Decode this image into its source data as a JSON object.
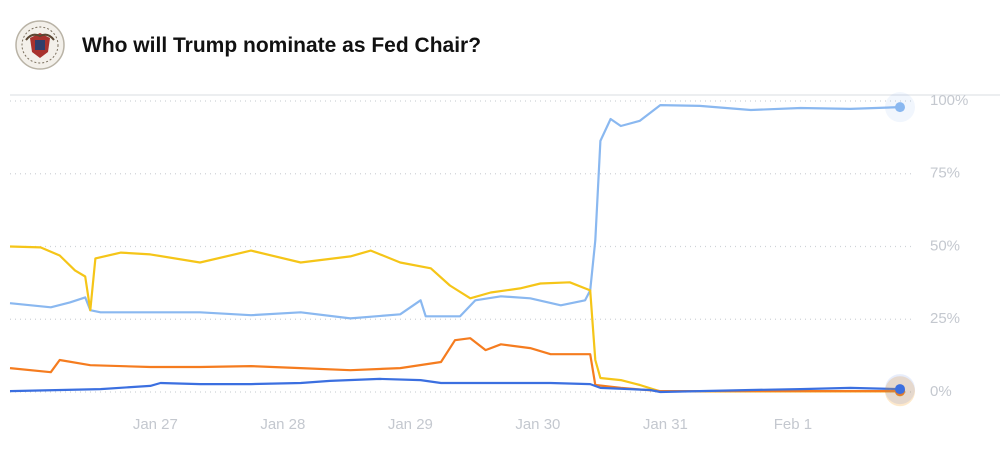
{
  "chart_data": {
    "type": "line",
    "title": "Who will Trump nominate as Fed Chair?",
    "xlim": [
      25.86,
      32.84
    ],
    "xticks": [
      {
        "value": 27,
        "label": "Jan 27"
      },
      {
        "value": 28,
        "label": "Jan 28"
      },
      {
        "value": 29,
        "label": "Jan 29"
      },
      {
        "value": 30,
        "label": "Jan 30"
      },
      {
        "value": 31,
        "label": "Jan 31"
      },
      {
        "value": 32,
        "label": "Feb 1"
      }
    ],
    "ylim": [
      0,
      100
    ],
    "yticks": [
      {
        "value": 0,
        "label": "0%"
      },
      {
        "value": 25,
        "label": "25%"
      },
      {
        "value": 50,
        "label": "50%"
      },
      {
        "value": 75,
        "label": "75%"
      },
      {
        "value": 100,
        "label": "100%"
      }
    ],
    "grid": true,
    "series": [
      {
        "color": "#8ab8f0",
        "x": [
          25.86,
          26.18,
          26.33,
          26.45,
          26.49,
          26.57,
          26.96,
          27.35,
          27.75,
          28.14,
          28.53,
          28.92,
          29.08,
          29.12,
          29.39,
          29.51,
          29.71,
          29.94,
          30.18,
          30.37,
          30.41,
          30.45,
          30.49,
          30.57,
          30.65,
          30.8,
          30.96,
          31.27,
          31.67,
          32.06,
          32.45,
          32.84
        ],
        "values": [
          30.5,
          29.1,
          30.8,
          32.5,
          28.1,
          27.4,
          27.4,
          27.4,
          26.4,
          27.4,
          25.3,
          26.7,
          31.5,
          26.0,
          26.0,
          31.5,
          32.9,
          32.2,
          29.8,
          31.5,
          34.9,
          52.1,
          86.3,
          93.8,
          91.4,
          93.2,
          98.6,
          98.3,
          96.9,
          97.6,
          97.3,
          97.9
        ]
      },
      {
        "color": "#f5c518",
        "x": [
          25.86,
          26.1,
          26.25,
          26.37,
          26.45,
          26.49,
          26.53,
          26.73,
          26.96,
          27.35,
          27.75,
          28.14,
          28.53,
          28.69,
          28.92,
          29.16,
          29.31,
          29.47,
          29.63,
          29.86,
          30.02,
          30.25,
          30.41,
          30.45,
          30.49,
          30.65,
          30.8,
          30.96,
          31.27,
          32.84
        ],
        "values": [
          50.0,
          49.7,
          46.9,
          41.8,
          39.7,
          28.1,
          45.9,
          47.9,
          47.3,
          44.5,
          48.6,
          44.5,
          46.6,
          48.6,
          44.5,
          42.5,
          36.6,
          32.2,
          34.2,
          35.6,
          37.3,
          37.7,
          34.9,
          11.0,
          4.8,
          4.1,
          2.4,
          0.2,
          0.2,
          0.2
        ]
      },
      {
        "color": "#f57c1f",
        "x": [
          25.86,
          26.18,
          26.25,
          26.49,
          26.96,
          27.35,
          27.75,
          28.14,
          28.53,
          28.92,
          29.24,
          29.35,
          29.47,
          29.59,
          29.71,
          29.94,
          30.1,
          30.41,
          30.45,
          30.65,
          30.96,
          31.27,
          32.84
        ],
        "values": [
          8.2,
          6.8,
          11.0,
          9.2,
          8.6,
          8.6,
          8.9,
          8.2,
          7.5,
          8.2,
          10.3,
          17.8,
          18.5,
          14.4,
          16.4,
          15.1,
          13.0,
          13.0,
          2.4,
          1.4,
          0.3,
          0.3,
          0.3
        ]
      },
      {
        "color": "#3b6fe0",
        "x": [
          25.86,
          26.57,
          26.96,
          27.04,
          27.35,
          27.75,
          28.14,
          28.37,
          28.76,
          29.08,
          29.24,
          29.71,
          30.1,
          30.41,
          30.49,
          30.88,
          30.96,
          31.27,
          31.67,
          32.06,
          32.45,
          32.84
        ],
        "values": [
          0.3,
          1.0,
          2.1,
          3.1,
          2.7,
          2.7,
          3.1,
          3.8,
          4.5,
          4.1,
          3.1,
          3.1,
          3.1,
          2.7,
          1.4,
          0.7,
          0.0,
          0.3,
          0.7,
          1.0,
          1.4,
          1.0
        ]
      }
    ]
  }
}
